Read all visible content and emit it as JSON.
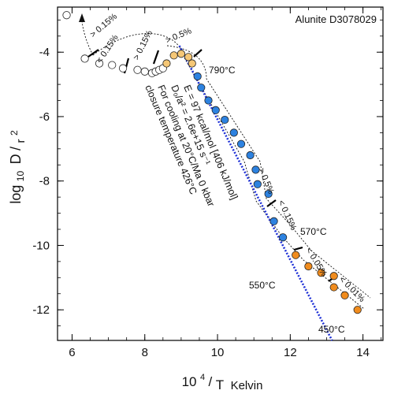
{
  "chart_data": {
    "type": "scatter",
    "title": "Alunite D3078029",
    "xlabel": {
      "exp": "4",
      "base": "10",
      "den": "T",
      "unit": "Kelvin"
    },
    "ylabel": {
      "pre": "log",
      "sub": "10",
      "D": "D",
      "den": "r",
      "pow": "2"
    },
    "xlim": [
      5.6,
      14.55
    ],
    "ylim": [
      -12.95,
      -2.6
    ],
    "xticks": [
      6,
      8,
      10,
      12,
      14
    ],
    "yticks": [
      -4,
      -6,
      -8,
      -10,
      -12
    ],
    "xtick_labels": [
      "6",
      "8",
      "10",
      "12",
      "14"
    ],
    "ytick_labels": [
      "-4",
      "-6",
      "-8",
      "-10",
      "-12"
    ],
    "grid": false,
    "series": [
      {
        "style": "open",
        "color": "#ffffff",
        "points": [
          [
            5.85,
            -2.85
          ],
          [
            6.35,
            -4.2
          ],
          [
            6.75,
            -4.35
          ],
          [
            7.1,
            -4.4
          ],
          [
            7.4,
            -4.5
          ],
          [
            7.8,
            -4.55
          ],
          [
            8.0,
            -4.6
          ],
          [
            8.2,
            -4.65
          ],
          [
            8.3,
            -4.6
          ],
          [
            8.4,
            -4.55
          ],
          [
            8.5,
            -4.5
          ]
        ]
      },
      {
        "style": "filled",
        "color": "#f5c776",
        "points": [
          [
            8.6,
            -4.35
          ],
          [
            8.8,
            -4.1
          ],
          [
            9.0,
            -4.05
          ],
          [
            9.2,
            -4.15
          ],
          [
            9.3,
            -4.35
          ]
        ]
      },
      {
        "style": "filled",
        "color": "#2d82e0",
        "points": [
          [
            9.45,
            -4.75
          ],
          [
            9.55,
            -5.1
          ],
          [
            9.75,
            -5.5
          ],
          [
            9.95,
            -5.8
          ],
          [
            10.2,
            -6.1
          ],
          [
            10.45,
            -6.5
          ],
          [
            10.65,
            -6.85
          ],
          [
            10.9,
            -7.2
          ],
          [
            11.05,
            -7.65
          ],
          [
            11.1,
            -8.1
          ],
          [
            11.4,
            -8.4
          ],
          [
            11.55,
            -9.25
          ],
          [
            11.8,
            -9.75
          ]
        ]
      },
      {
        "style": "filled",
        "color": "#f08c1e",
        "points": [
          [
            12.15,
            -10.3
          ],
          [
            12.5,
            -10.65
          ],
          [
            12.85,
            -10.85
          ],
          [
            13.2,
            -10.95
          ],
          [
            13.2,
            -11.3
          ],
          [
            13.5,
            -11.55
          ],
          [
            13.85,
            -12.0
          ]
        ]
      }
    ],
    "fit_line": {
      "color": "#1d2fd6",
      "points": [
        [
          8.95,
          -3.8
        ],
        [
          13.15,
          -12.95
        ]
      ]
    },
    "annotations": {
      "pct_015_up": "> 0.15%",
      "pct_015_lt": "< 0.15%",
      "pct_015_gt": "> 0.15%",
      "pct_05_top": "> 0.5%",
      "temp_790": "790°C",
      "pct_05_gt": "> 0.5%",
      "pct_015_lt2": "< 0.15%",
      "temp_570": "570°C",
      "pct_005_lt": "< 0.05%",
      "pct_001_lt": "< 0.01%",
      "temp_550": "550°C",
      "temp_450": "450°C",
      "fit_line1": "E = 97 kcal/mol [406 kJ/mol]",
      "fit_line2": "D₀/a² = 2.6e+15 s⁻¹",
      "closure_line1": "For cooling at 20°C/Ma 0 kbar",
      "closure_line2": "closure temperature 426°C"
    }
  }
}
